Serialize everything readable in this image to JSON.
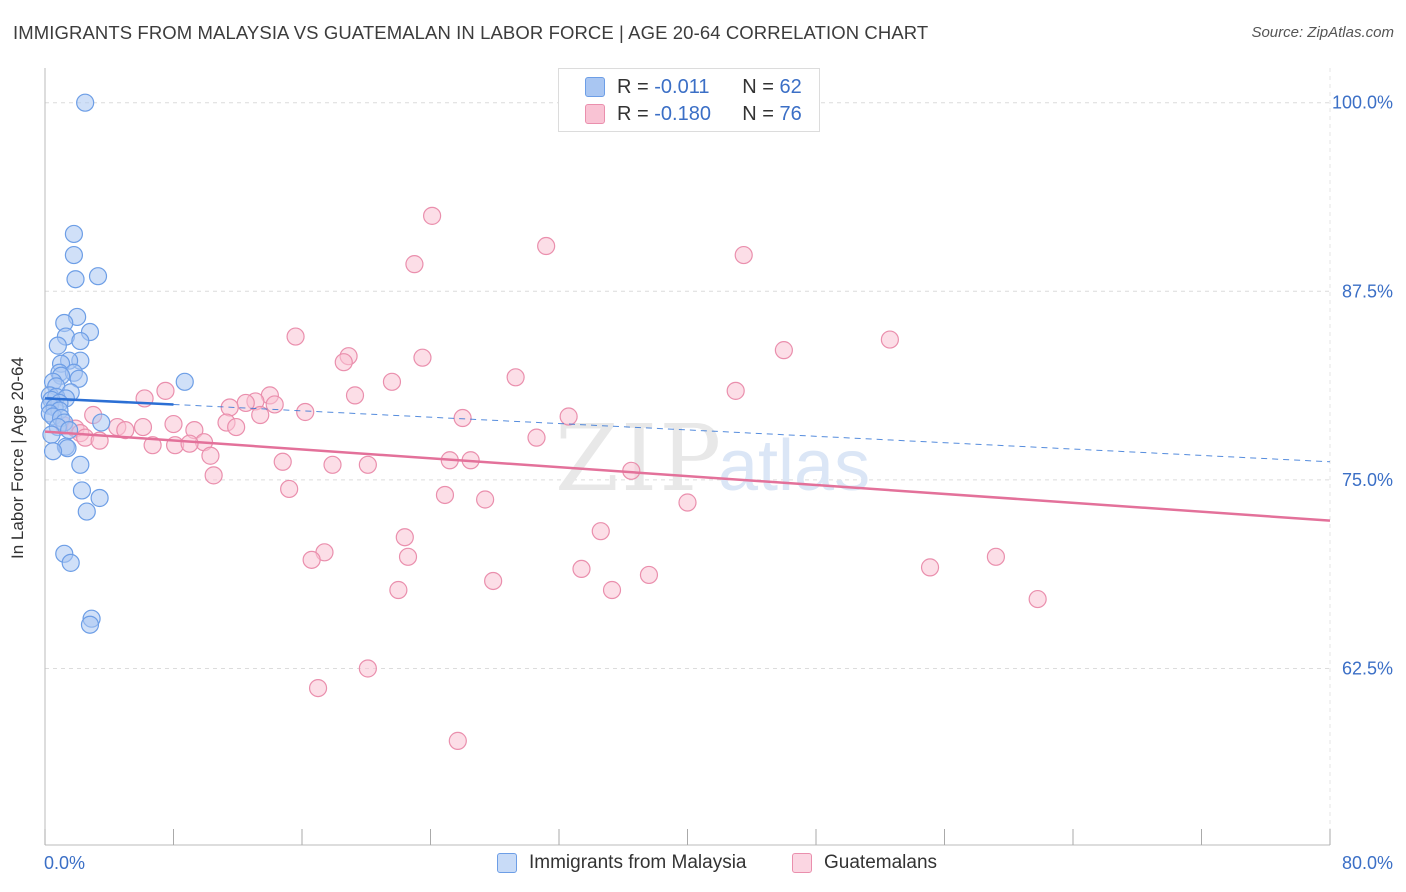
{
  "header": {
    "title": "IMMIGRANTS FROM MALAYSIA VS GUATEMALAN IN LABOR FORCE | AGE 20-64 CORRELATION CHART",
    "source": "Source: ZipAtlas.com"
  },
  "watermark": {
    "zip": "ZIP",
    "atlas": "atlas"
  },
  "legend": {
    "r_label": "R =",
    "n_label": "N =",
    "rows": [
      {
        "r": "-0.011",
        "n": "62",
        "color": "#a9c6f2",
        "border": "#6d9ee6"
      },
      {
        "r": "-0.180",
        "n": "76",
        "color": "#f9c3d4",
        "border": "#ea8fad"
      }
    ]
  },
  "chart_data": {
    "type": "scatter",
    "title": "IMMIGRANTS FROM MALAYSIA VS GUATEMALAN IN LABOR FORCE | AGE 20-64 CORRELATION CHART",
    "xlabel": "",
    "ylabel": "In Labor Force | Age 20-64",
    "xlim": [
      0,
      80
    ],
    "ylim": [
      50.8,
      102.3
    ],
    "x_tick_labels": [
      "0.0%",
      "80.0%"
    ],
    "y_ticks": [
      62.5,
      75.0,
      87.5,
      100.0
    ],
    "y_tick_labels": [
      "62.5%",
      "75.0%",
      "87.5%",
      "100.0%"
    ],
    "grid": true,
    "legend_position": "top-center",
    "series": [
      {
        "name": "Immigrants from Malaysia",
        "color": "#6d9ee6",
        "fill": "#a9c6f2",
        "trend": {
          "x": [
            0.0,
            8.0
          ],
          "y": [
            80.4,
            80.0
          ],
          "color": "#2b6fd4"
        },
        "trend_extension": {
          "x": [
            8.0,
            80.0
          ],
          "y": [
            80.0,
            76.2
          ]
        },
        "points": [
          [
            2.5,
            100.0
          ],
          [
            1.8,
            91.3
          ],
          [
            1.8,
            89.9
          ],
          [
            1.9,
            88.3
          ],
          [
            3.3,
            88.5
          ],
          [
            2.0,
            85.8
          ],
          [
            1.2,
            85.4
          ],
          [
            2.8,
            84.8
          ],
          [
            1.3,
            84.5
          ],
          [
            2.2,
            84.2
          ],
          [
            0.8,
            83.9
          ],
          [
            2.2,
            82.9
          ],
          [
            1.5,
            82.9
          ],
          [
            1.0,
            82.7
          ],
          [
            0.9,
            82.1
          ],
          [
            1.8,
            82.1
          ],
          [
            1.0,
            81.9
          ],
          [
            2.1,
            81.7
          ],
          [
            0.5,
            81.5
          ],
          [
            0.7,
            81.2
          ],
          [
            1.6,
            80.8
          ],
          [
            8.7,
            81.5
          ],
          [
            0.3,
            80.6
          ],
          [
            0.7,
            80.5
          ],
          [
            1.3,
            80.4
          ],
          [
            0.4,
            80.3
          ],
          [
            0.9,
            80.1
          ],
          [
            0.3,
            79.9
          ],
          [
            0.6,
            79.8
          ],
          [
            0.9,
            79.6
          ],
          [
            0.3,
            79.4
          ],
          [
            0.5,
            79.2
          ],
          [
            1.0,
            79.1
          ],
          [
            1.2,
            78.8
          ],
          [
            3.5,
            78.8
          ],
          [
            0.8,
            78.5
          ],
          [
            1.5,
            78.3
          ],
          [
            0.4,
            78.0
          ],
          [
            1.3,
            77.2
          ],
          [
            1.4,
            77.1
          ],
          [
            0.5,
            76.9
          ],
          [
            2.2,
            76.0
          ],
          [
            2.3,
            74.3
          ],
          [
            3.4,
            73.8
          ],
          [
            2.6,
            72.9
          ],
          [
            1.2,
            70.1
          ],
          [
            1.6,
            69.5
          ],
          [
            2.9,
            65.8
          ],
          [
            2.8,
            65.4
          ]
        ]
      },
      {
        "name": "Guatemalans",
        "color": "#ea8fad",
        "fill": "#f9c3d4",
        "trend": {
          "x": [
            0.0,
            80.0
          ],
          "y": [
            78.2,
            72.3
          ],
          "color": "#e3719a"
        },
        "points": [
          [
            24.1,
            92.5
          ],
          [
            31.2,
            90.5
          ],
          [
            43.5,
            89.9
          ],
          [
            23.0,
            89.3
          ],
          [
            15.6,
            84.5
          ],
          [
            52.6,
            84.3
          ],
          [
            46.0,
            83.6
          ],
          [
            18.9,
            83.2
          ],
          [
            23.5,
            83.1
          ],
          [
            18.6,
            82.8
          ],
          [
            29.3,
            81.8
          ],
          [
            21.6,
            81.5
          ],
          [
            43.0,
            80.9
          ],
          [
            7.5,
            80.9
          ],
          [
            19.3,
            80.6
          ],
          [
            14.0,
            80.6
          ],
          [
            6.2,
            80.4
          ],
          [
            13.1,
            80.2
          ],
          [
            12.5,
            80.1
          ],
          [
            14.3,
            80.0
          ],
          [
            11.5,
            79.8
          ],
          [
            16.2,
            79.5
          ],
          [
            13.4,
            79.3
          ],
          [
            32.6,
            79.2
          ],
          [
            26.0,
            79.1
          ],
          [
            3.0,
            79.3
          ],
          [
            11.3,
            78.8
          ],
          [
            8.0,
            78.7
          ],
          [
            1.2,
            78.6
          ],
          [
            4.5,
            78.5
          ],
          [
            1.9,
            78.4
          ],
          [
            5.0,
            78.3
          ],
          [
            6.1,
            78.5
          ],
          [
            2.2,
            78.1
          ],
          [
            9.3,
            78.3
          ],
          [
            11.9,
            78.5
          ],
          [
            2.5,
            77.8
          ],
          [
            3.4,
            77.6
          ],
          [
            30.6,
            77.8
          ],
          [
            8.1,
            77.3
          ],
          [
            9.9,
            77.5
          ],
          [
            6.7,
            77.3
          ],
          [
            9.0,
            77.4
          ],
          [
            10.3,
            76.6
          ],
          [
            14.8,
            76.2
          ],
          [
            17.9,
            76.0
          ],
          [
            25.2,
            76.3
          ],
          [
            26.5,
            76.3
          ],
          [
            20.1,
            76.0
          ],
          [
            36.5,
            75.6
          ],
          [
            10.5,
            75.3
          ],
          [
            15.2,
            74.4
          ],
          [
            24.9,
            74.0
          ],
          [
            27.4,
            73.7
          ],
          [
            40.0,
            73.5
          ],
          [
            34.6,
            71.6
          ],
          [
            22.4,
            71.2
          ],
          [
            17.4,
            70.2
          ],
          [
            16.6,
            69.7
          ],
          [
            22.6,
            69.9
          ],
          [
            33.4,
            69.1
          ],
          [
            37.6,
            68.7
          ],
          [
            55.1,
            69.2
          ],
          [
            59.2,
            69.9
          ],
          [
            27.9,
            68.3
          ],
          [
            22.0,
            67.7
          ],
          [
            35.3,
            67.7
          ],
          [
            61.8,
            67.1
          ],
          [
            20.1,
            62.5
          ],
          [
            17.0,
            61.2
          ],
          [
            25.7,
            57.7
          ]
        ]
      }
    ]
  }
}
